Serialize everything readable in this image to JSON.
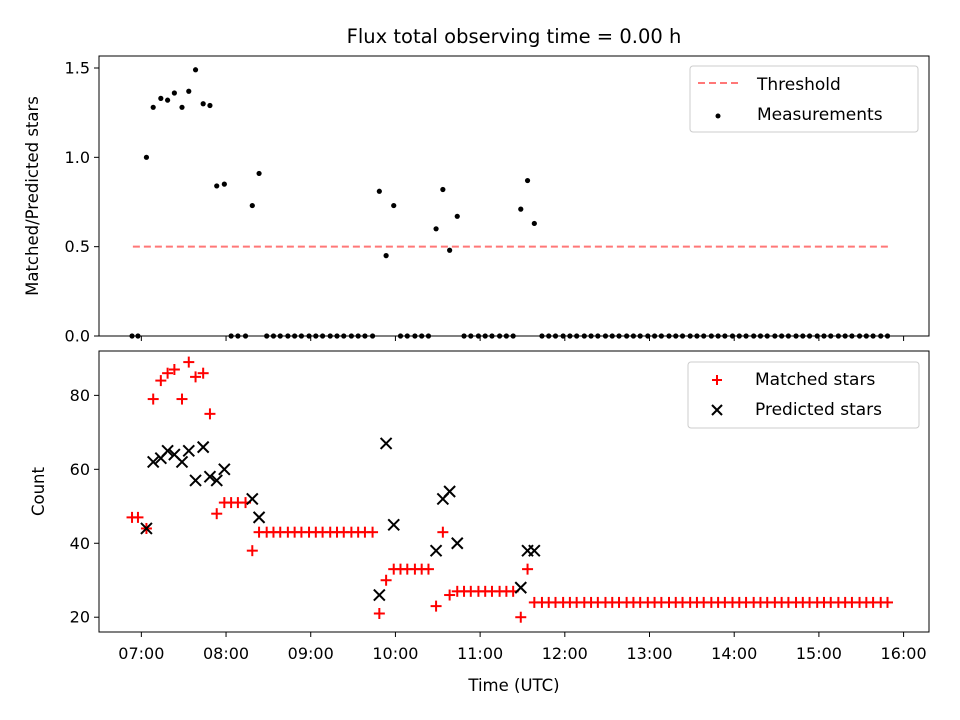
{
  "chart_data": [
    {
      "type": "scatter",
      "title": "Flux total observing time = 0.00 h",
      "ylabel": "Matched/Predicted stars",
      "xlim": [
        6.5,
        16.3
      ],
      "ylim": [
        0,
        1.5
      ],
      "x_is_shared": true,
      "yticks": [
        "0.0",
        "0.5",
        "1.0",
        "1.5"
      ],
      "legend": {
        "position": "top-right",
        "entries": [
          "Threshold",
          "Measurements"
        ]
      },
      "threshold": {
        "name": "Threshold",
        "x_range": [
          6.9,
          15.85
        ],
        "y": 0.5,
        "color": "#ff7777",
        "style": "dashed"
      },
      "series": [
        {
          "name": "Measurements",
          "color": "#000000",
          "x": [
            6.89,
            6.96,
            7.06,
            7.14,
            7.23,
            7.31,
            7.39,
            7.48,
            7.56,
            7.64,
            7.73,
            7.81,
            7.89,
            7.98,
            8.06,
            8.14,
            8.23,
            8.31,
            8.39,
            8.48,
            8.56,
            8.64,
            8.73,
            8.81,
            8.89,
            8.98,
            9.06,
            9.14,
            9.23,
            9.31,
            9.39,
            9.48,
            9.56,
            9.64,
            9.73,
            9.81,
            9.89,
            9.98,
            10.06,
            10.14,
            10.23,
            10.31,
            10.39,
            10.48,
            10.56,
            10.64,
            10.73,
            10.81,
            10.89,
            10.98,
            11.06,
            11.14,
            11.23,
            11.31,
            11.39,
            11.48,
            11.56,
            11.64,
            11.73,
            11.81,
            11.89,
            11.98,
            12.06,
            12.14,
            12.23,
            12.31,
            12.39,
            12.48,
            12.56,
            12.64,
            12.73,
            12.81,
            12.89,
            12.98,
            13.06,
            13.14,
            13.23,
            13.31,
            13.39,
            13.48,
            13.56,
            13.64,
            13.73,
            13.81,
            13.89,
            13.98,
            14.06,
            14.14,
            14.23,
            14.31,
            14.39,
            14.48,
            14.56,
            14.64,
            14.73,
            14.81,
            14.89,
            14.98,
            15.06,
            15.14,
            15.23,
            15.31,
            15.39,
            15.48,
            15.56,
            15.64,
            15.73,
            15.81
          ],
          "y": [
            0,
            0,
            1.0,
            1.28,
            1.33,
            1.32,
            1.36,
            1.28,
            1.37,
            1.49,
            1.3,
            1.29,
            0.84,
            0.85,
            0,
            0,
            0,
            0.73,
            0.91,
            0,
            0,
            0,
            0,
            0,
            0,
            0,
            0,
            0,
            0,
            0,
            0,
            0,
            0,
            0,
            0,
            0.81,
            0.45,
            0.73,
            0,
            0,
            0,
            0,
            0,
            0.6,
            0.82,
            0.48,
            0.67,
            0,
            0,
            0,
            0,
            0,
            0,
            0,
            0,
            0.71,
            0.87,
            0.63,
            0,
            0,
            0,
            0,
            0,
            0,
            0,
            0,
            0,
            0,
            0,
            0,
            0,
            0,
            0,
            0,
            0,
            0,
            0,
            0,
            0,
            0,
            0,
            0,
            0,
            0,
            0,
            0,
            0,
            0,
            0,
            0,
            0,
            0,
            0,
            0,
            0,
            0,
            0,
            0,
            0,
            0,
            0,
            0,
            0,
            0,
            0,
            0,
            0,
            0
          ]
        }
      ]
    },
    {
      "type": "scatter",
      "xlabel": "Time (UTC)",
      "ylabel": "Count",
      "xlim": [
        6.5,
        16.3
      ],
      "ylim": [
        16,
        92
      ],
      "xticks": [
        {
          "v": 7,
          "label": "07:00"
        },
        {
          "v": 8,
          "label": "08:00"
        },
        {
          "v": 9,
          "label": "09:00"
        },
        {
          "v": 10,
          "label": "10:00"
        },
        {
          "v": 11,
          "label": "11:00"
        },
        {
          "v": 12,
          "label": "12:00"
        },
        {
          "v": 13,
          "label": "13:00"
        },
        {
          "v": 14,
          "label": "14:00"
        },
        {
          "v": 15,
          "label": "15:00"
        },
        {
          "v": 16,
          "label": "16:00"
        }
      ],
      "yticks": [
        "20",
        "40",
        "60",
        "80"
      ],
      "legend": {
        "position": "top-right",
        "entries": [
          "Matched stars",
          "Predicted stars"
        ]
      },
      "series": [
        {
          "name": "Matched stars",
          "marker": "+",
          "color": "#ff0000",
          "x": [
            6.89,
            6.96,
            7.06,
            7.14,
            7.23,
            7.31,
            7.39,
            7.48,
            7.56,
            7.64,
            7.73,
            7.81,
            7.89,
            7.98,
            8.06,
            8.14,
            8.23,
            8.31,
            8.39,
            8.48,
            8.56,
            8.64,
            8.73,
            8.81,
            8.89,
            8.98,
            9.06,
            9.14,
            9.23,
            9.31,
            9.39,
            9.48,
            9.56,
            9.64,
            9.73,
            9.81,
            9.89,
            9.98,
            10.06,
            10.14,
            10.23,
            10.31,
            10.39,
            10.48,
            10.56,
            10.64,
            10.73,
            10.81,
            10.89,
            10.98,
            11.06,
            11.14,
            11.23,
            11.31,
            11.39,
            11.48,
            11.56,
            11.64,
            11.73,
            11.81,
            11.89,
            11.98,
            12.06,
            12.14,
            12.23,
            12.31,
            12.39,
            12.48,
            12.56,
            12.64,
            12.73,
            12.81,
            12.89,
            12.98,
            13.06,
            13.14,
            13.23,
            13.31,
            13.39,
            13.48,
            13.56,
            13.64,
            13.73,
            13.81,
            13.89,
            13.98,
            14.06,
            14.14,
            14.23,
            14.31,
            14.39,
            14.48,
            14.56,
            14.64,
            14.73,
            14.81,
            14.89,
            14.98,
            15.06,
            15.14,
            15.23,
            15.31,
            15.39,
            15.48,
            15.56,
            15.64,
            15.73,
            15.81
          ],
          "y": [
            47,
            47,
            44,
            79,
            84,
            86,
            87,
            79,
            89,
            85,
            86,
            75,
            48,
            51,
            51,
            51,
            51,
            38,
            43,
            43,
            43,
            43,
            43,
            43,
            43,
            43,
            43,
            43,
            43,
            43,
            43,
            43,
            43,
            43,
            43,
            21,
            30,
            33,
            33,
            33,
            33,
            33,
            33,
            23,
            43,
            26,
            27,
            27,
            27,
            27,
            27,
            27,
            27,
            27,
            27,
            20,
            33,
            24,
            24,
            24,
            24,
            24,
            24,
            24,
            24,
            24,
            24,
            24,
            24,
            24,
            24,
            24,
            24,
            24,
            24,
            24,
            24,
            24,
            24,
            24,
            24,
            24,
            24,
            24,
            24,
            24,
            24,
            24,
            24,
            24,
            24,
            24,
            24,
            24,
            24,
            24,
            24,
            24,
            24,
            24,
            24,
            24,
            24,
            24,
            24,
            24,
            24,
            24
          ]
        },
        {
          "name": "Predicted stars",
          "marker": "x",
          "color": "#000000",
          "x": [
            7.06,
            7.14,
            7.23,
            7.31,
            7.39,
            7.48,
            7.56,
            7.64,
            7.73,
            7.81,
            7.89,
            7.98,
            8.31,
            8.39,
            9.81,
            9.89,
            9.98,
            10.48,
            10.56,
            10.64,
            10.73,
            11.48,
            11.56,
            11.64
          ],
          "y": [
            44,
            62,
            63,
            65,
            64,
            62,
            65,
            57,
            66,
            58,
            57,
            60,
            52,
            47,
            26,
            67,
            45,
            38,
            52,
            54,
            40,
            28,
            38,
            38
          ]
        }
      ]
    }
  ]
}
